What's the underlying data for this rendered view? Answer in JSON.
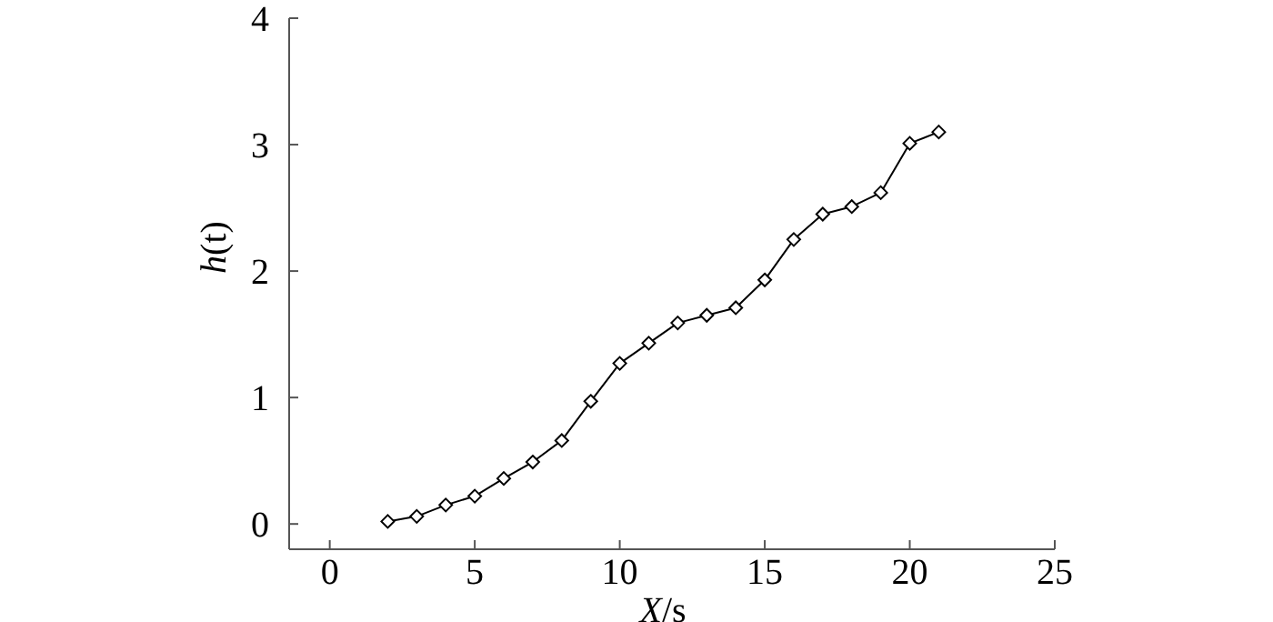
{
  "chart_data": {
    "type": "line",
    "xlabel": "X/s",
    "ylabel": "h(t)",
    "x": [
      2,
      3,
      4,
      5,
      6,
      7,
      8,
      9,
      10,
      11,
      12,
      13,
      14,
      15,
      16,
      17,
      18,
      19,
      20,
      21
    ],
    "series": [
      {
        "color": "#000000",
        "values": [
          0.02,
          0.06,
          0.15,
          0.22,
          0.36,
          0.49,
          0.66,
          0.97,
          1.27,
          1.43,
          1.59,
          1.65,
          1.71,
          1.93,
          2.25,
          2.45,
          2.51,
          2.62,
          3.01,
          3.1
        ]
      }
    ],
    "xlim": [
      -1.4,
      25
    ],
    "xticks": [
      0,
      5,
      10,
      15,
      20,
      25
    ],
    "ylim": [
      -0.2,
      4
    ],
    "yticks": [
      0,
      1,
      2,
      3,
      4
    ],
    "marker": "diamond",
    "line_style": "solid"
  }
}
